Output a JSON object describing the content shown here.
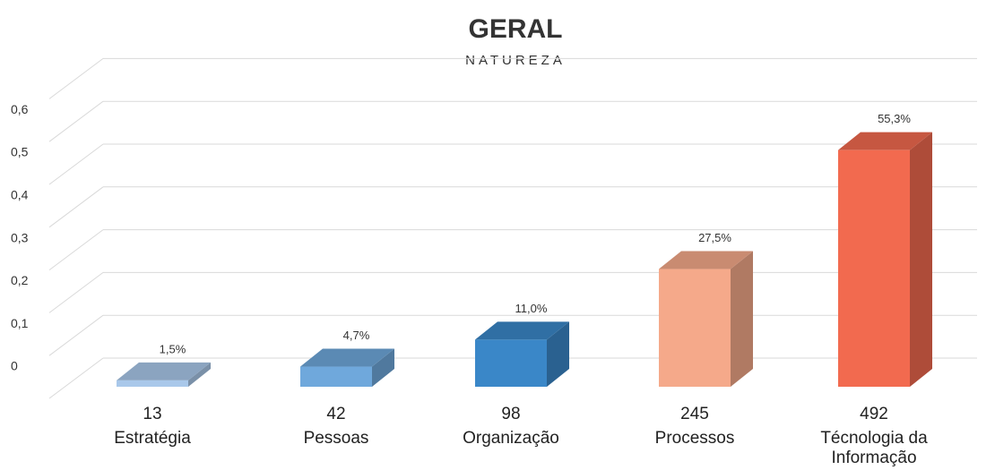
{
  "chart_data": {
    "type": "bar3d",
    "title": "GERAL",
    "subtitle": "NATUREZA",
    "categories": [
      "Estratégia",
      "Pessoas",
      "Organização",
      "Processos",
      "Técnologia da Informação"
    ],
    "counts": [
      13,
      42,
      98,
      245,
      492
    ],
    "values": [
      0.015,
      0.047,
      0.11,
      0.275,
      0.553
    ],
    "value_labels": [
      "1,5%",
      "4,7%",
      "11,0%",
      "27,5%",
      "55,3%"
    ],
    "colors": [
      "#a9c8ea",
      "#6fa8dc",
      "#3a87c8",
      "#f5a98a",
      "#f26a4f"
    ],
    "ylim": [
      0,
      0.7
    ],
    "yticks": [
      0,
      {
        "value": 0.1,
        "label": "0,1"
      },
      {
        "value": 0.2,
        "label": "0,2"
      },
      {
        "value": 0.3,
        "label": "0,3"
      },
      {
        "value": 0.4,
        "label": "0,4"
      },
      {
        "value": 0.5,
        "label": "0,5"
      },
      {
        "value": 0.6,
        "label": "0,6"
      }
    ],
    "grid": true
  }
}
